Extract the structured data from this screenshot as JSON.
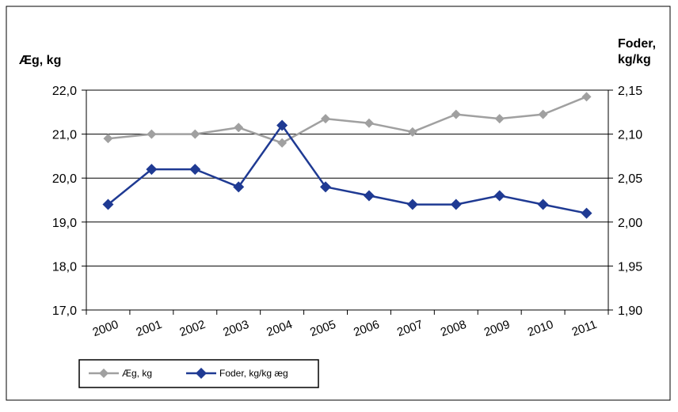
{
  "chart_data": {
    "type": "line",
    "categories": [
      "2000",
      "2001",
      "2002",
      "2003",
      "2004",
      "2005",
      "2006",
      "2007",
      "2008",
      "2009",
      "2010",
      "2011"
    ],
    "y_left": {
      "title": "Æg, kg",
      "ylim": [
        17.0,
        22.0
      ],
      "ticks": [
        17.0,
        18.0,
        19.0,
        20.0,
        21.0,
        22.0
      ],
      "tick_labels": [
        "17,0",
        "18,0",
        "19,0",
        "20,0",
        "21,0",
        "22,0"
      ]
    },
    "y_right": {
      "title_line1": "Foder,",
      "title_line2": "kg/kg",
      "ylim": [
        1.9,
        2.15
      ],
      "ticks": [
        1.9,
        1.95,
        2.0,
        2.05,
        2.1,
        2.15
      ],
      "tick_labels": [
        "1,90",
        "1,95",
        "2,00",
        "2,05",
        "2,10",
        "2,15"
      ]
    },
    "grid": true,
    "legend_position": "bottom-left",
    "series": [
      {
        "name": "Æg, kg",
        "axis": "left",
        "color": "#a0a0a0",
        "marker": "diamond",
        "values": [
          20.9,
          21.0,
          21.0,
          21.15,
          20.8,
          21.35,
          21.25,
          21.05,
          21.45,
          21.35,
          21.45,
          21.85
        ]
      },
      {
        "name": "Foder, kg/kg æg",
        "axis": "right",
        "color": "#1f3a93",
        "marker": "diamond",
        "values": [
          2.02,
          2.06,
          2.06,
          2.04,
          2.11,
          2.04,
          2.03,
          2.02,
          2.02,
          2.03,
          2.02,
          2.01
        ]
      }
    ]
  }
}
